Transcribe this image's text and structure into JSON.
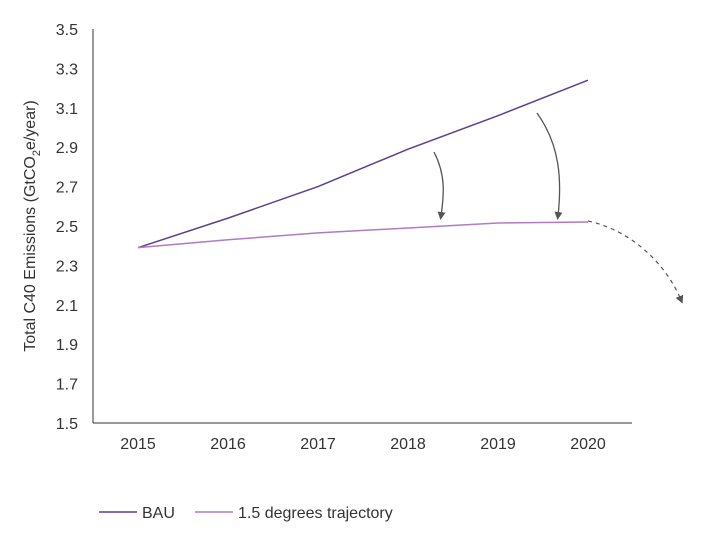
{
  "chart_data": {
    "type": "line",
    "x": [
      2015,
      2016,
      2017,
      2018,
      2019,
      2020
    ],
    "x_tick_labels": [
      "2015",
      "2016",
      "2017",
      "2018",
      "2019",
      "2020"
    ],
    "y_ticks": [
      "3.5",
      "3.3",
      "3.1",
      "2.9",
      "2.7",
      "2.5",
      "2.3",
      "2.1",
      "1.9",
      "1.7",
      "1.5"
    ],
    "ylim": [
      1.5,
      3.5
    ],
    "ylabel_main": "Total C40 Emissions (GtCO",
    "ylabel_sub": "2",
    "ylabel_tail": "e/year)",
    "xlabel": "",
    "title": "",
    "grid": false,
    "legend_position": "bottom-left",
    "series": [
      {
        "name": "BAU",
        "color": "#5b3f91",
        "values": [
          2.39,
          2.54,
          2.7,
          2.89,
          3.06,
          3.24
        ]
      },
      {
        "name": "1.5 degrees trajectory",
        "color": "#b07bc2",
        "values": [
          2.39,
          2.43,
          2.465,
          2.49,
          2.515,
          2.52
        ]
      }
    ],
    "annotations": {
      "arrows": "curved arrows from BAU down to the 1.5 degrees trajectory at 2018 and 2019.5",
      "dashed_projection": "dashed curved arrow continuing downward after 2020"
    }
  }
}
